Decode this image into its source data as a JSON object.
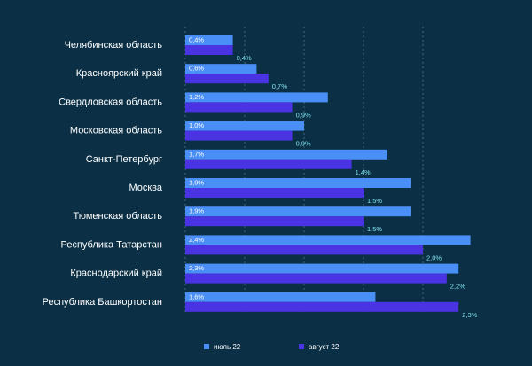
{
  "chart_data": {
    "type": "bar",
    "orientation": "horizontal",
    "categories": [
      "Челябинская область",
      "Красноярский край",
      "Свердловская область",
      "Московская область",
      "Санкт-Петербург",
      "Москва",
      "Тюменская область",
      "Республика Татарстан",
      "Краснодарский край",
      "Республика Башкортостан"
    ],
    "series": [
      {
        "name": "июль 22",
        "color": "#4a8ff5",
        "values": [
          0.4,
          0.6,
          1.2,
          1.0,
          1.7,
          1.9,
          1.9,
          2.4,
          2.3,
          1.6
        ],
        "labels": [
          "0,4%",
          "0,6%",
          "1,2%",
          "1,0%",
          "1,7%",
          "1,9%",
          "1,9%",
          "2,4%",
          "2,3%",
          "1,6%"
        ]
      },
      {
        "name": "август 22",
        "color": "#4a33e3",
        "values": [
          0.4,
          0.7,
          0.9,
          0.9,
          1.4,
          1.5,
          1.5,
          2.0,
          2.2,
          2.3
        ],
        "labels": [
          "0,4%",
          "0,7%",
          "0,9%",
          "0,9%",
          "1,4%",
          "1,5%",
          "1,5%",
          "2,0%",
          "2,2%",
          "2,3%"
        ]
      }
    ],
    "xlim": [
      0,
      2.5
    ],
    "grid": true,
    "legend_position": "bottom"
  }
}
